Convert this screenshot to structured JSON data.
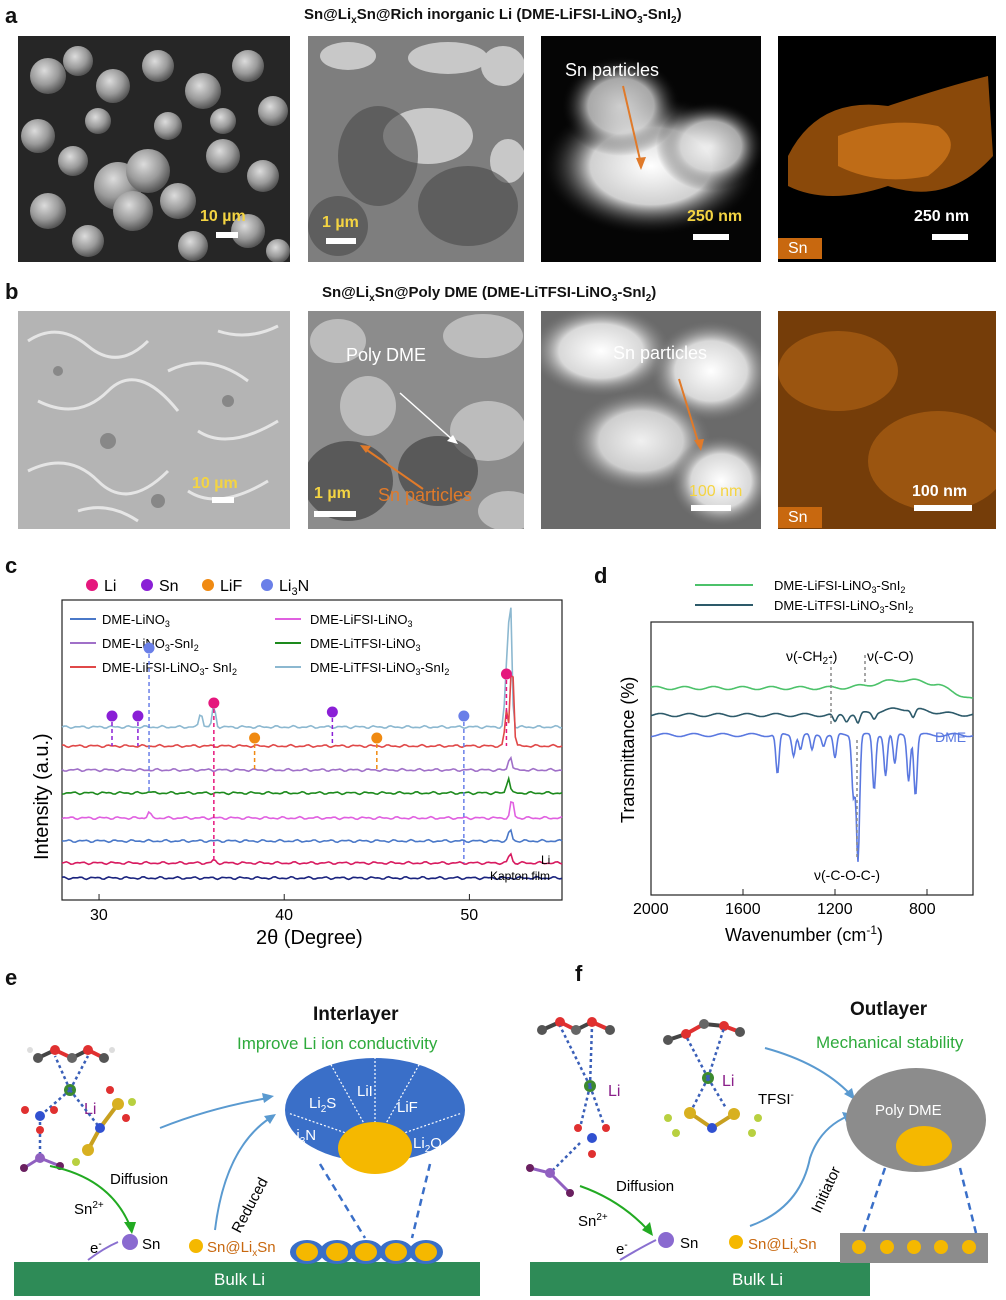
{
  "panel_a": {
    "label": "a",
    "title_parts": [
      "Sn@Li",
      "x",
      "Sn@Rich inorganic Li (DME-LiFSI-LiNO",
      "3",
      "-SnI",
      "2",
      ")"
    ],
    "sem_scale": "10 µm",
    "tem_scale": "1 µm",
    "haadf_label": "Sn particles",
    "haadf_scale": "250 nm",
    "eds_scale": "250 nm",
    "eds_element": "Sn"
  },
  "panel_b": {
    "label": "b",
    "title_parts": [
      "Sn@Li",
      "x",
      "Sn@Poly DME (DME-LiTFSI-LiNO",
      "3",
      "-SnI",
      "2",
      ")"
    ],
    "sem_scale": "10 µm",
    "tem_label_poly": "Poly DME",
    "tem_label_sn": "Sn particles",
    "tem_scale": "1 µm",
    "haadf_label": "Sn particles",
    "haadf_scale": "100 nm",
    "eds_scale": "100 nm",
    "eds_element": "Sn"
  },
  "chart_data": [
    {
      "type": "line",
      "panel": "c",
      "xlabel": "2θ (Degree)",
      "ylabel": "Intensity (a.u.)",
      "xlim": [
        28,
        55
      ],
      "xticks": [
        30,
        40,
        50
      ],
      "marker_legend": [
        {
          "name": "Li",
          "color": "#e5177d"
        },
        {
          "name": "Sn",
          "color": "#8a1fd6"
        },
        {
          "name": "LiF",
          "color": "#f08a12"
        },
        {
          "name": "Li3N",
          "color": "#6a7fe8"
        }
      ],
      "series_legend": [
        {
          "name": "DME-LiNO3",
          "color": "#4a78c8"
        },
        {
          "name": "DME-LiFSI-LiNO3",
          "color": "#e060e0"
        },
        {
          "name": "DME-LiNO3-SnI2",
          "color": "#a070c8"
        },
        {
          "name": "DME-LiTFSI-LiNO3",
          "color": "#1d8a1d"
        },
        {
          "name": "DME-LiFSI-LiNO3- SnI2",
          "color": "#e04848"
        },
        {
          "name": "DME-LiTFSI-LiNO3-SnI2",
          "color": "#8cb8d0"
        }
      ],
      "traces": [
        {
          "name": "DME-LiTFSI-LiNO3-SnI2",
          "color": "#8cb8d0",
          "peaks": [
            [
              35.5,
              0.7
            ],
            [
              36.2,
              1.0
            ],
            [
              52.0,
              2.5
            ],
            [
              52.2,
              6.0
            ]
          ]
        },
        {
          "name": "DME-LiFSI-LiNO3- SnI2",
          "color": "#e04848",
          "peaks": [
            [
              52.0,
              2.0
            ],
            [
              52.3,
              5.0
            ]
          ]
        },
        {
          "name": "DME-LiNO3-SnI2",
          "color": "#a070c8",
          "peaks": [
            [
              52.2,
              1.5
            ]
          ]
        },
        {
          "name": "DME-LiTFSI-LiNO3",
          "color": "#1d8a1d",
          "peaks": [
            [
              32.7,
              0.2
            ],
            [
              52.1,
              1.6
            ]
          ]
        },
        {
          "name": "DME-LiFSI-LiNO3",
          "color": "#e060e0",
          "peaks": [
            [
              32.7,
              0.5
            ],
            [
              52.3,
              1.6
            ]
          ]
        },
        {
          "name": "DME-LiNO3",
          "color": "#4a78c8",
          "peaks": [
            [
              52.2,
              1.2
            ]
          ]
        },
        {
          "name": "Li",
          "color": "#d81b60",
          "peaks": [
            [
              36.2,
              0.3
            ],
            [
              52.2,
              1.0
            ]
          ]
        },
        {
          "name": "Kapton film",
          "color": "#1a237e",
          "peaks": []
        }
      ],
      "trace_labels": [
        "Li",
        "Kapton film"
      ],
      "peak_markers": [
        {
          "phase": "Sn",
          "x": 30.7,
          "color": "#8a1fd6"
        },
        {
          "phase": "Sn",
          "x": 32.1,
          "color": "#8a1fd6"
        },
        {
          "phase": "Li",
          "x": 36.2,
          "color": "#e5177d"
        },
        {
          "phase": "Sn",
          "x": 42.6,
          "color": "#8a1fd6"
        },
        {
          "phase": "Li3N",
          "x": 49.7,
          "color": "#6a7fe8"
        },
        {
          "phase": "Li",
          "x": 52.0,
          "color": "#e5177d"
        },
        {
          "phase": "LiF",
          "x": 38.4,
          "color": "#f08a12"
        },
        {
          "phase": "LiF",
          "x": 45.0,
          "color": "#f08a12"
        },
        {
          "phase": "Li3N",
          "x": 32.7,
          "color": "#6a7fe8"
        }
      ]
    },
    {
      "type": "line",
      "panel": "d",
      "xlabel": "Wavenumber (cm-1)",
      "ylabel": "Transmittance (%)",
      "xlim": [
        2000,
        600
      ],
      "xticks": [
        2000,
        1600,
        1200,
        800
      ],
      "series": [
        {
          "name": "DME-LiFSI-LiNO3-SnI2",
          "color": "#4cc26a"
        },
        {
          "name": "DME-LiTFSI-LiNO3-SnI2",
          "color": "#2d5a6a"
        },
        {
          "name": "DME",
          "color": "#5a78e0"
        }
      ],
      "annotations": [
        {
          "text": "ν(-CH2-)",
          "x": 1200
        },
        {
          "text": "ν(-C-O)",
          "x": 1060
        },
        {
          "text": "ν(-C-O-C-)",
          "x": 1100
        }
      ]
    }
  ],
  "panel_e": {
    "label": "e",
    "title": "Interlayer",
    "subtitle": "Improve Li ion conductivity",
    "li_label": "Li",
    "diffusion": "Diffusion",
    "sn2": "Sn2+",
    "electron": "e-",
    "sn": "Sn",
    "reduced": "Reduced",
    "snlix": "Sn@LixSn",
    "bulk": "Bulk Li",
    "components": [
      "Li2S",
      "LiI",
      "LiF",
      "Li3N",
      "Li2O"
    ]
  },
  "panel_f": {
    "label": "f",
    "title": "Outlayer",
    "subtitle": "Mechanical stability",
    "li_label": "Li",
    "tfsi": "TFSI-",
    "diffusion": "Diffusion",
    "sn2": "Sn2+",
    "electron": "e-",
    "sn": "Sn",
    "initiator": "Initiator",
    "snlix": "Sn@LixSn",
    "bulk": "Bulk Li",
    "poly": "Poly DME"
  },
  "colors": {
    "accent_orange": "#e07a2a",
    "scale_yellow": "#f4d442",
    "green_text": "#2eaa3c",
    "bulk_green": "#2e8b57",
    "interlayer_blue": "#3a6fc8",
    "sn_gold": "#f5b800",
    "poly_gray": "#8c8c8c"
  }
}
